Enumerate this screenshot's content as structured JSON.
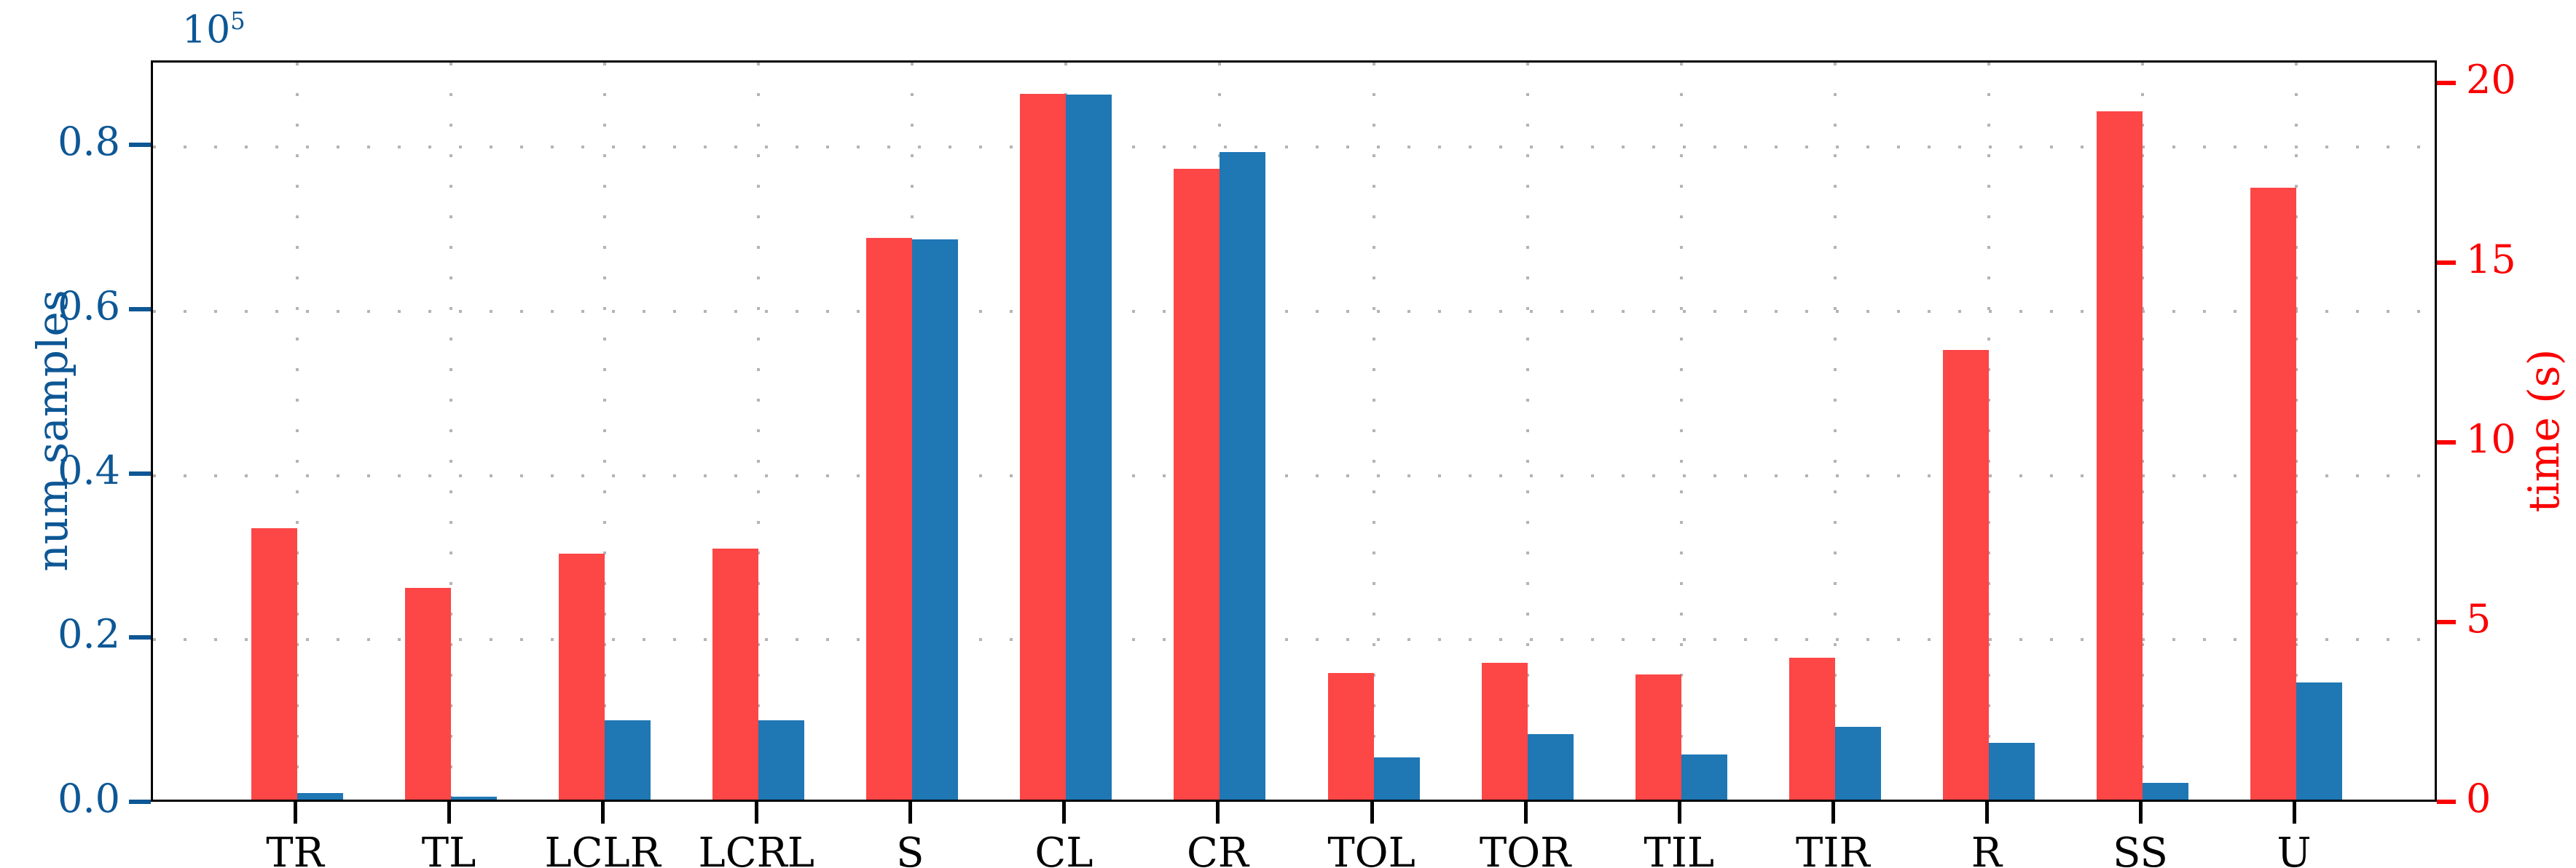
{
  "chart_data": {
    "type": "bar",
    "title": "",
    "categories": [
      "TR",
      "TL",
      "LCLR",
      "LCRL",
      "S",
      "CL",
      "CR",
      "TOL",
      "TOR",
      "TIL",
      "TIR",
      "R",
      "SS",
      "U"
    ],
    "series": [
      {
        "name": "time",
        "axis": "right",
        "color": "#fd4646",
        "values": [
          7.55,
          5.89,
          6.84,
          6.98,
          15.63,
          19.64,
          17.55,
          3.52,
          3.81,
          3.48,
          3.95,
          12.51,
          19.15,
          17.02
        ]
      },
      {
        "name": "num samples",
        "axis": "left",
        "color": "#1f77b4",
        "values": [
          800,
          400,
          9700,
          9700,
          68200,
          85900,
          78900,
          5100,
          8000,
          5500,
          8900,
          6900,
          2000,
          14300
        ]
      }
    ],
    "left_axis": {
      "label": "num samples",
      "color": "#0d5795",
      "tick_values": [
        0.0,
        0.2,
        0.4,
        0.6,
        0.8
      ],
      "tick_labels": [
        "0.0",
        "0.2",
        "0.4",
        "0.6",
        "0.8"
      ],
      "offset_base": "10",
      "offset_exp": "5",
      "unit_scale": 100000,
      "max": 0.903
    },
    "right_axis": {
      "label": "time (s)",
      "color": "#fb0000",
      "tick_values": [
        0,
        5,
        10,
        15,
        20
      ],
      "tick_labels": [
        "0",
        "5",
        "10",
        "15",
        "20"
      ],
      "max": 20.63
    },
    "grid": {
      "on": true,
      "style": "dotted",
      "color": "#b4b4b4"
    },
    "legend": {
      "visible": false
    }
  }
}
